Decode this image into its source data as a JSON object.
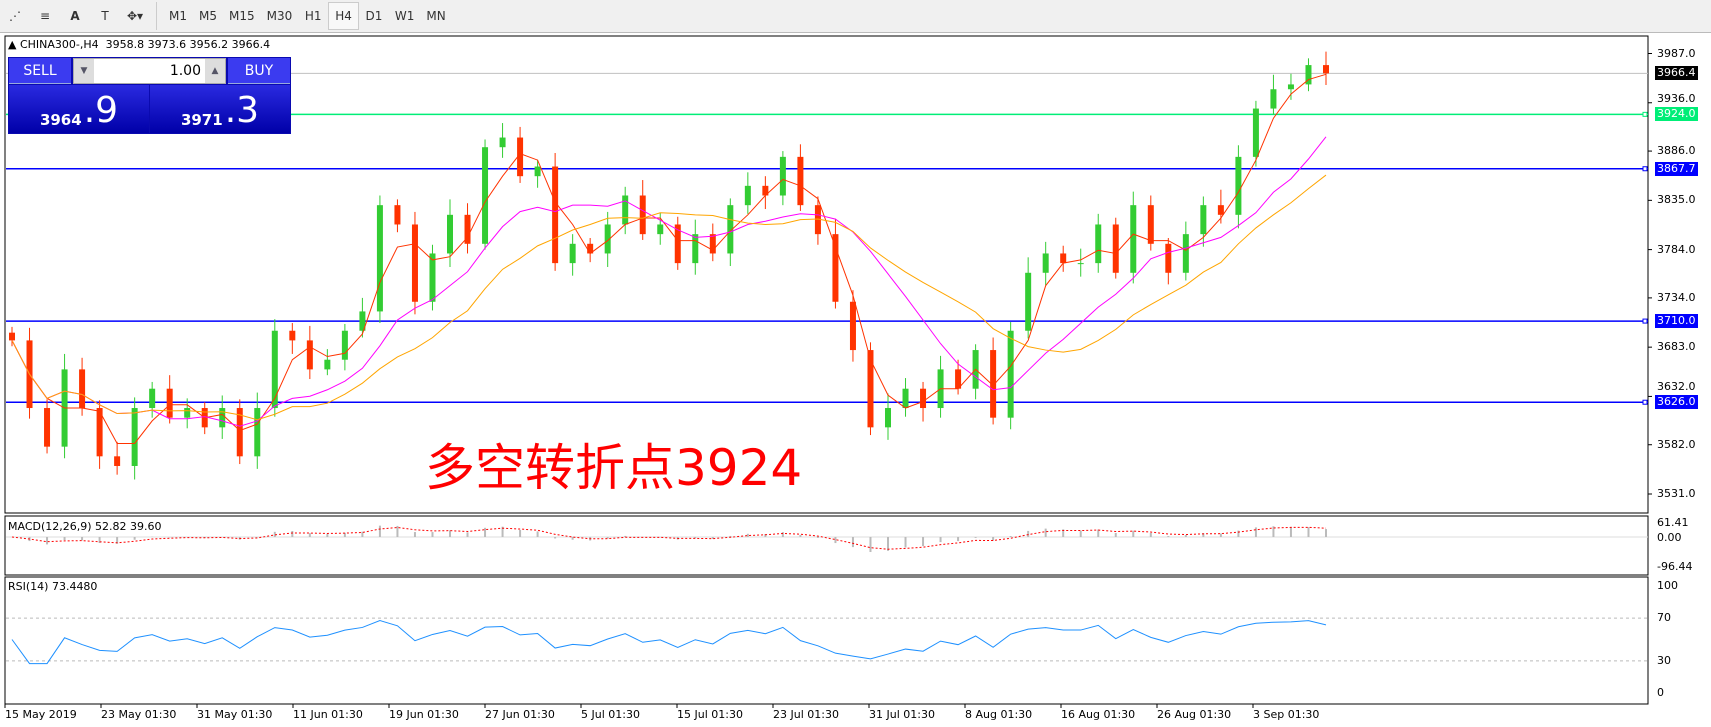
{
  "toolbar": {
    "tools": [
      {
        "icon": "fibo-expansion-icon"
      },
      {
        "icon": "fibo-fan-icon"
      },
      {
        "icon": "text-icon",
        "label": "A"
      },
      {
        "icon": "text-label-icon",
        "label": "T"
      },
      {
        "icon": "arrows-icon",
        "label": "▾"
      }
    ],
    "timeframes": [
      "M1",
      "M5",
      "M15",
      "M30",
      "H1",
      "H4",
      "D1",
      "W1",
      "MN"
    ],
    "active": "H4"
  },
  "chart": {
    "title": "CHINA300-,H4",
    "ohlc": "3958.8 3973.6 3956.2 3966.4",
    "annotation": "多空转折点3924",
    "price_axis": [
      "3987.0",
      "3936.0",
      "3886.0",
      "3835.0",
      "3784.0",
      "3734.0",
      "3683.0",
      "3632.0",
      "3582.0",
      "3531.0"
    ],
    "current_price": "3966.4",
    "hlines": [
      {
        "value": 3924.0,
        "label": "3924.0",
        "color": "#00ee77"
      },
      {
        "value": 3867.7,
        "label": "3867.7",
        "color": "#0000ff"
      },
      {
        "value": 3710.0,
        "label": "3710.0",
        "color": "#0000ff"
      },
      {
        "value": 3626.0,
        "label": "3626.0",
        "color": "#0000ff"
      }
    ],
    "dates": [
      "15 May 2019",
      "23 May 01:30",
      "31 May 01:30",
      "11 Jun 01:30",
      "19 Jun 01:30",
      "27 Jun 01:30",
      "5 Jul 01:30",
      "15 Jul 01:30",
      "23 Jul 01:30",
      "31 Jul 01:30",
      "8 Aug 01:30",
      "16 Aug 01:30",
      "26 Aug 01:30",
      "3 Sep 01:30"
    ],
    "closes": [
      3690,
      3620,
      3580,
      3660,
      3620,
      3570,
      3560,
      3620,
      3640,
      3610,
      3620,
      3600,
      3620,
      3570,
      3620,
      3700,
      3690,
      3660,
      3670,
      3700,
      3720,
      3830,
      3810,
      3730,
      3780,
      3820,
      3790,
      3890,
      3900,
      3860,
      3870,
      3770,
      3790,
      3780,
      3810,
      3840,
      3800,
      3810,
      3770,
      3800,
      3780,
      3830,
      3850,
      3840,
      3880,
      3830,
      3800,
      3730,
      3680,
      3600,
      3620,
      3640,
      3620,
      3660,
      3640,
      3680,
      3610,
      3700,
      3760,
      3780,
      3770,
      3770,
      3810,
      3760,
      3830,
      3790,
      3760,
      3800,
      3830,
      3820,
      3880,
      3930,
      3950,
      3955,
      3975,
      3966.4
    ],
    "colors": {
      "up": "#33cc33",
      "down": "#ff3300"
    }
  },
  "macd": {
    "label": "MACD(12,26,9) 52.82 39.60",
    "axis": [
      "61.41",
      "0.00",
      "-96.44"
    ]
  },
  "rsi": {
    "label": "RSI(14) 73.4480",
    "axis": [
      "100",
      "70",
      "30",
      "0"
    ]
  },
  "trade": {
    "sell": "SELL",
    "buy": "BUY",
    "lot": "1.00",
    "bid_main": "3964",
    "bid_frac": ".9",
    "ask_main": "3971",
    "ask_frac": ".3"
  }
}
